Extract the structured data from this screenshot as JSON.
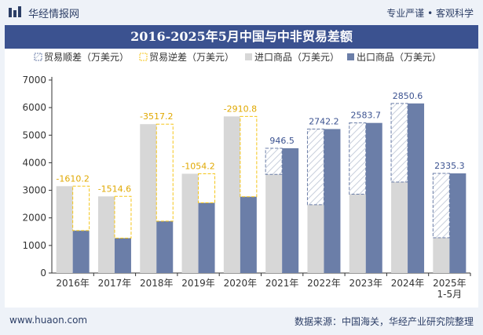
{
  "header": {
    "brand": "华经情报网",
    "tagline": "专业严谨 • 客观科学"
  },
  "footer": {
    "site": "www.huaon.com",
    "source": "数据来源：中国海关，华经产业研究院整理"
  },
  "colors": {
    "import": "#d7d7d7",
    "export": "#6b7ea8",
    "surplus_border": "#6b7ea8",
    "deficit_border": "#f5c518",
    "title_bg": "#3b5290",
    "label_surplus": "#3b5290",
    "label_deficit": "#e0a800"
  },
  "chart_data": {
    "type": "bar",
    "title": "2016-2025年5月中国与中非贸易差额",
    "legend": [
      "贸易顺差（万美元）",
      "贸易逆差（万美元）",
      "进口商品（万美元）",
      "出口商品（万美元）"
    ],
    "categories": [
      "2016年",
      "2017年",
      "2018年",
      "2019年",
      "2020年",
      "2021年",
      "2022年",
      "2023年",
      "2024年",
      "2025年\n1-5月"
    ],
    "category_labels": [
      [
        "2016年"
      ],
      [
        "2017年"
      ],
      [
        "2018年"
      ],
      [
        "2019年"
      ],
      [
        "2020年"
      ],
      [
        "2021年"
      ],
      [
        "2022年"
      ],
      [
        "2023年"
      ],
      [
        "2024年"
      ],
      [
        "2025年",
        "1-5月"
      ]
    ],
    "series": [
      {
        "name": "进口商品（万美元）",
        "values": [
          3150,
          2780,
          5400,
          3600,
          5680,
          3580,
          2480,
          2860,
          3300,
          1280
        ]
      },
      {
        "name": "出口商品（万美元）",
        "values": [
          1540,
          1265,
          1883,
          2546,
          2769,
          4526,
          5222,
          5444,
          6151,
          3615
        ]
      }
    ],
    "balance": [
      -1610.2,
      -1514.6,
      -3517.2,
      -1054.2,
      -2910.8,
      946.5,
      2742.2,
      2583.7,
      2850.6,
      2335.3
    ],
    "balance_labels": [
      "-1610.2",
      "-1514.6",
      "-3517.2",
      "-1054.2",
      "-2910.8",
      "946.5",
      "2742.2",
      "2583.7",
      "2850.6",
      "2335.3"
    ],
    "y_ticks": [
      "0",
      "1000",
      "2000",
      "3000",
      "4000",
      "5000",
      "6000",
      "7000"
    ],
    "ylim": [
      0,
      7000
    ],
    "xlabel": "",
    "ylabel": ""
  }
}
